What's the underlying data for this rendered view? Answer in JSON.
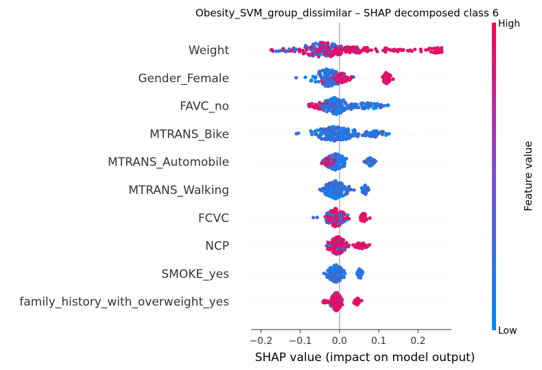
{
  "chart_data": {
    "type": "scatter",
    "subtype": "shap-beeswarm",
    "title": "Obesity_SVM_group_dissimilar – SHAP decomposed class 6",
    "xlabel": "SHAP value (impact on model output)",
    "xlim": [
      -0.225,
      0.285
    ],
    "xticks": [
      -0.2,
      -0.1,
      0.0,
      0.1,
      0.2
    ],
    "xtick_labels": [
      "−0.2",
      "−0.1",
      "0.0",
      "0.1",
      "0.2"
    ],
    "colorbar": {
      "label": "Feature value",
      "high_label": "High",
      "low_label": "Low",
      "low_color": "#008bfb",
      "high_color": "#ff0052"
    },
    "features": [
      {
        "name": "Weight",
        "clusters": [
          {
            "center": -0.04,
            "spread": 0.06,
            "count": 160,
            "mix": 0.55,
            "height": 0.75
          },
          {
            "center": 0.04,
            "spread": 0.06,
            "count": 45,
            "mix": 0.95,
            "height": 0.3
          },
          {
            "center": 0.13,
            "spread": 0.07,
            "count": 30,
            "mix": 1.0,
            "height": 0.2
          },
          {
            "center": 0.24,
            "spread": 0.03,
            "count": 25,
            "mix": 1.0,
            "height": 0.35
          },
          {
            "center": -0.13,
            "spread": 0.07,
            "count": 22,
            "mix": 0.2,
            "height": 0.15
          }
        ]
      },
      {
        "name": "Gender_Female",
        "clusters": [
          {
            "center": -0.03,
            "spread": 0.04,
            "count": 140,
            "mix": 0.05,
            "height": 0.85
          },
          {
            "center": 0.005,
            "spread": 0.02,
            "count": 55,
            "mix": 0.95,
            "height": 0.45
          },
          {
            "center": 0.12,
            "spread": 0.012,
            "count": 60,
            "mix": 1.0,
            "height": 0.55
          }
        ]
      },
      {
        "name": "FAVC_no",
        "clusters": [
          {
            "center": -0.05,
            "spread": 0.035,
            "count": 40,
            "mix": 0.95,
            "height": 0.3
          },
          {
            "center": -0.01,
            "spread": 0.035,
            "count": 150,
            "mix": 0.05,
            "height": 0.8
          },
          {
            "center": 0.07,
            "spread": 0.05,
            "count": 60,
            "mix": 0.0,
            "height": 0.3
          }
        ]
      },
      {
        "name": "MTRANS_Bike",
        "clusters": [
          {
            "center": -0.01,
            "spread": 0.06,
            "count": 170,
            "mix": 0.0,
            "height": 0.7
          },
          {
            "center": 0.09,
            "spread": 0.035,
            "count": 55,
            "mix": 0.0,
            "height": 0.3
          }
        ]
      },
      {
        "name": "MTRANS_Automobile",
        "clusters": [
          {
            "center": -0.01,
            "spread": 0.025,
            "count": 150,
            "mix": 0.08,
            "height": 0.8
          },
          {
            "center": -0.03,
            "spread": 0.02,
            "count": 30,
            "mix": 0.9,
            "height": 0.3
          },
          {
            "center": 0.078,
            "spread": 0.01,
            "count": 40,
            "mix": 0.0,
            "height": 0.4
          }
        ]
      },
      {
        "name": "MTRANS_Walking",
        "clusters": [
          {
            "center": -0.01,
            "spread": 0.03,
            "count": 190,
            "mix": 0.0,
            "height": 0.85
          },
          {
            "center": 0.065,
            "spread": 0.008,
            "count": 35,
            "mix": 0.0,
            "height": 0.45
          }
        ]
      },
      {
        "name": "FCVC",
        "clusters": [
          {
            "center": -0.01,
            "spread": 0.025,
            "count": 170,
            "mix": 0.6,
            "height": 0.85
          },
          {
            "center": 0.062,
            "spread": 0.008,
            "count": 40,
            "mix": 1.0,
            "height": 0.45
          },
          {
            "center": -0.06,
            "spread": 0.01,
            "count": 2,
            "mix": 0.35,
            "height": 0.1
          }
        ]
      },
      {
        "name": "NCP",
        "clusters": [
          {
            "center": -0.005,
            "spread": 0.022,
            "count": 170,
            "mix": 0.78,
            "height": 0.85
          },
          {
            "center": 0.055,
            "spread": 0.018,
            "count": 45,
            "mix": 1.0,
            "height": 0.3
          }
        ]
      },
      {
        "name": "SMOKE_yes",
        "clusters": [
          {
            "center": -0.01,
            "spread": 0.02,
            "count": 210,
            "mix": 0.0,
            "height": 0.85
          },
          {
            "center": 0.052,
            "spread": 0.006,
            "count": 40,
            "mix": 0.0,
            "height": 0.5
          }
        ]
      },
      {
        "name": "family_history_with_overweight_yes",
        "clusters": [
          {
            "center": -0.008,
            "spread": 0.013,
            "count": 200,
            "mix": 0.88,
            "height": 0.9
          },
          {
            "center": 0.045,
            "spread": 0.01,
            "count": 30,
            "mix": 1.0,
            "height": 0.35
          },
          {
            "center": -0.035,
            "spread": 0.012,
            "count": 10,
            "mix": 0.9,
            "height": 0.15
          }
        ]
      }
    ]
  }
}
